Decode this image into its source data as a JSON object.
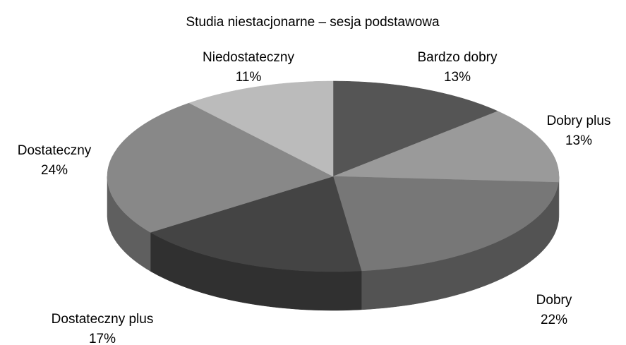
{
  "chart_data": {
    "type": "pie",
    "title": "Studia niestacjonarne – sesja podstawowa",
    "categories": [
      "Bardzo dobry",
      "Dobry plus",
      "Dobry",
      "Dostateczny plus",
      "Dostateczny",
      "Niedostateczny"
    ],
    "values": [
      13,
      13,
      22,
      17,
      24,
      11
    ],
    "value_labels": [
      "13%",
      "13%",
      "22%",
      "17%",
      "24%",
      "11%"
    ],
    "colors": [
      "#555555",
      "#9a9a9a",
      "#777777",
      "#444444",
      "#888888",
      "#bbbbbb"
    ]
  }
}
